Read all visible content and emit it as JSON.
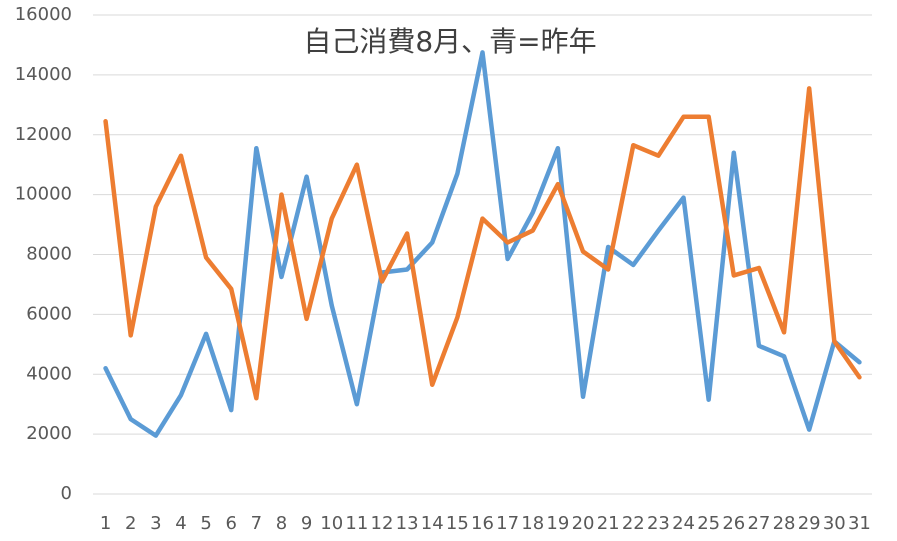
{
  "chart_data": {
    "type": "line",
    "title": "自己消費8月、青=昨年",
    "categories": [
      "1",
      "2",
      "3",
      "4",
      "5",
      "6",
      "7",
      "8",
      "9",
      "10",
      "11",
      "12",
      "13",
      "14",
      "15",
      "16",
      "17",
      "18",
      "19",
      "20",
      "21",
      "22",
      "23",
      "24",
      "25",
      "26",
      "27",
      "28",
      "29",
      "30",
      "31"
    ],
    "series": [
      {
        "color": "#5b9bd5",
        "values": [
          4200,
          2500,
          1950,
          3300,
          5350,
          2800,
          11550,
          7250,
          10600,
          6300,
          3000,
          7400,
          7500,
          8400,
          10700,
          14750,
          7850,
          9400,
          11550,
          3250,
          8250,
          7650,
          8800,
          9900,
          3150,
          11400,
          4950,
          4600,
          2150,
          5100,
          4400
        ]
      },
      {
        "color": "#ed7d31",
        "values": [
          12450,
          5300,
          9600,
          11300,
          7900,
          6850,
          3200,
          10000,
          5850,
          9200,
          11000,
          7100,
          8700,
          3650,
          5900,
          9200,
          8400,
          8800,
          10350,
          8100,
          7500,
          11650,
          11300,
          12600,
          12600,
          7300,
          7550,
          5400,
          13550,
          5100,
          3900
        ]
      }
    ],
    "ylim": [
      0,
      16000
    ],
    "yticks": [
      0,
      2000,
      4000,
      6000,
      8000,
      10000,
      12000,
      14000,
      16000
    ],
    "grid": true
  }
}
